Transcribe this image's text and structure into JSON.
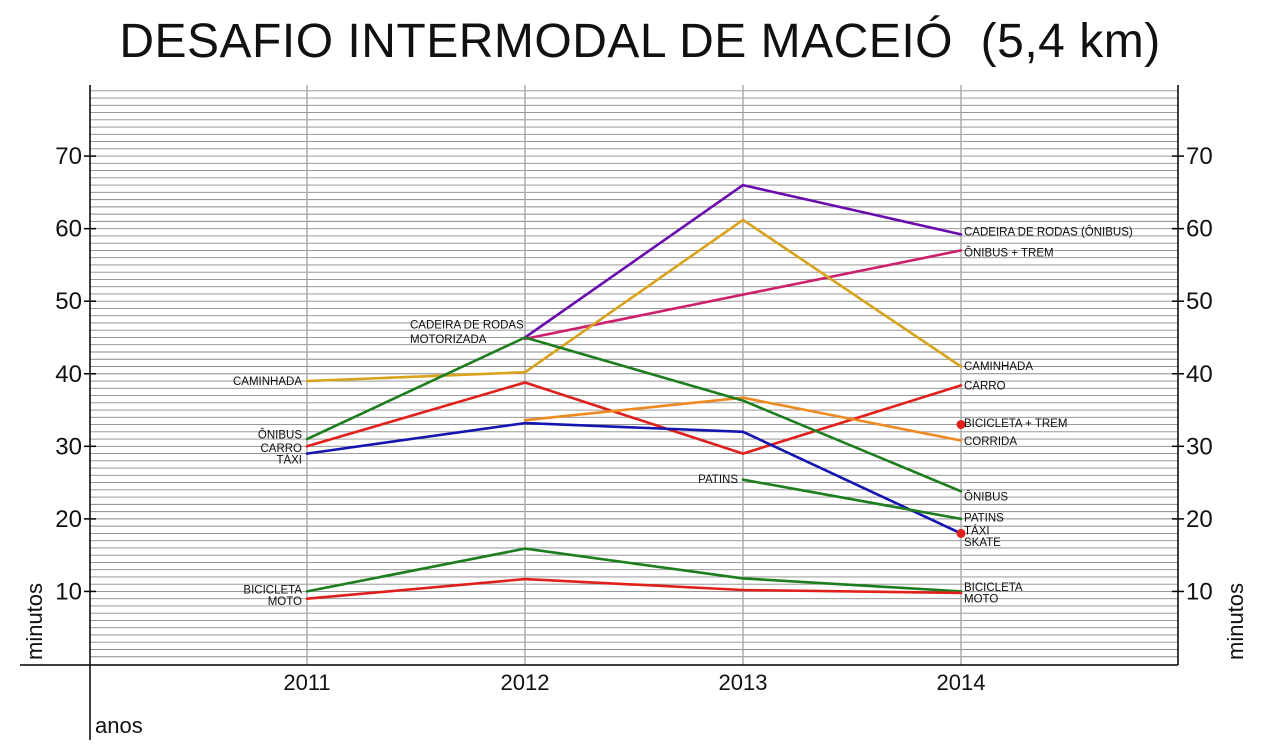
{
  "chart_data": {
    "type": "line",
    "title": "DESAFIO INTERMODAL DE MACEIÓ  (5,4 km)",
    "xlabel": "anos",
    "ylabel": "minutos",
    "x": [
      2011,
      2012,
      2013,
      2014
    ],
    "x_tick_labels": [
      "2011",
      "2012",
      "2013",
      "2014"
    ],
    "y_ticks": [
      10,
      20,
      30,
      40,
      50,
      60,
      70
    ],
    "y_tick_labels": [
      "10",
      "20",
      "30",
      "40",
      "50",
      "60",
      "70"
    ],
    "y_tick_labels_right": [
      "10",
      "20",
      "30",
      "40",
      "50",
      "60",
      "70"
    ],
    "ylim": [
      0,
      80
    ],
    "grid": true,
    "series": [
      {
        "name": "CADEIRA DE RODAS (ÔNIBUS)",
        "color": "#6a0dad",
        "points": [
          [
            2012,
            45
          ],
          [
            2013,
            66
          ],
          [
            2014,
            59.2
          ]
        ]
      },
      {
        "name": "ÔNIBUS + TREM",
        "color": "#cc1f6e",
        "points": [
          [
            2012,
            44.8
          ],
          [
            2014,
            57
          ]
        ]
      },
      {
        "name": "CAMINHADA",
        "color": "#d9a21b",
        "points": [
          [
            2011,
            39
          ],
          [
            2012,
            40.2
          ],
          [
            2013,
            61.2
          ],
          [
            2014,
            41
          ]
        ]
      },
      {
        "name": "CARRO",
        "color": "#e0201b",
        "points": [
          [
            2011,
            30
          ],
          [
            2012,
            38.8
          ],
          [
            2013,
            29
          ],
          [
            2014,
            38.4
          ]
        ]
      },
      {
        "name": "CORRIDA",
        "color": "#ee8a22",
        "points": [
          [
            2012,
            33.6
          ],
          [
            2013,
            36.7
          ],
          [
            2014,
            30.8
          ]
        ]
      },
      {
        "name": "ÔNIBUS",
        "color": "#1e7d1e",
        "points": [
          [
            2011,
            31
          ],
          [
            2012,
            45
          ],
          [
            2013,
            36.3
          ],
          [
            2014,
            23.8
          ]
        ]
      },
      {
        "name": "TÁXI",
        "color": "#1515b0",
        "points": [
          [
            2011,
            29
          ],
          [
            2012,
            33.2
          ],
          [
            2013,
            32
          ],
          [
            2014,
            18
          ]
        ]
      },
      {
        "name": "PATINS",
        "color": "#1e7d1e",
        "points": [
          [
            2013,
            25.4
          ],
          [
            2014,
            20
          ]
        ]
      },
      {
        "name": "BICICLETA",
        "color": "#1e7d1e",
        "points": [
          [
            2011,
            10
          ],
          [
            2012,
            15.9
          ],
          [
            2013,
            11.8
          ],
          [
            2014,
            10
          ]
        ]
      },
      {
        "name": "MOTO",
        "color": "#e0201b",
        "points": [
          [
            2011,
            9
          ],
          [
            2012,
            11.7
          ],
          [
            2013,
            10.2
          ],
          [
            2014,
            9.8
          ]
        ]
      }
    ],
    "points": [
      {
        "name": "BICICLETA + TREM",
        "color": "#e0201b",
        "x": 2014,
        "y": 33
      },
      {
        "name": "SKATE",
        "color": "#e0201b",
        "x": 2014,
        "y": 18
      }
    ],
    "annotations": {
      "left": [
        {
          "text": "CAMINHADA",
          "y": 39
        },
        {
          "text": "ÔNIBUS",
          "y": 31.6
        },
        {
          "text": "CARRO",
          "y": 29.8
        },
        {
          "text": "TÁXI",
          "y": 28.2
        },
        {
          "text": "BICICLETA",
          "y": 10.3
        },
        {
          "text": "MOTO",
          "y": 8.7
        }
      ],
      "mid": [
        {
          "text": "CADEIRA DE RODAS",
          "x": 2011.47,
          "y": 46.8
        },
        {
          "text": "MOTORIZADA",
          "x": 2011.47,
          "y": 44.8
        },
        {
          "text": "PATINS",
          "x": 2012.77,
          "y": 25.5
        }
      ],
      "right": [
        {
          "text": "CADEIRA DE RODAS (ÔNIBUS)",
          "y": 59.6
        },
        {
          "text": "ÔNIBUS + TREM",
          "y": 56.7
        },
        {
          "text": "CAMINHADA",
          "y": 41.1
        },
        {
          "text": "CARRO",
          "y": 38.4
        },
        {
          "text": "BICICLETA + TREM",
          "y": 33.2
        },
        {
          "text": "CORRIDA",
          "y": 30.7
        },
        {
          "text": "ÔNIBUS",
          "y": 23.1
        },
        {
          "text": "PATINS",
          "y": 20.2
        },
        {
          "text": "TÁXI",
          "y": 18.4
        },
        {
          "text": "SKATE",
          "y": 16.8
        },
        {
          "text": "BICICLETA",
          "y": 10.6
        },
        {
          "text": "MOTO",
          "y": 9.0
        }
      ]
    }
  }
}
